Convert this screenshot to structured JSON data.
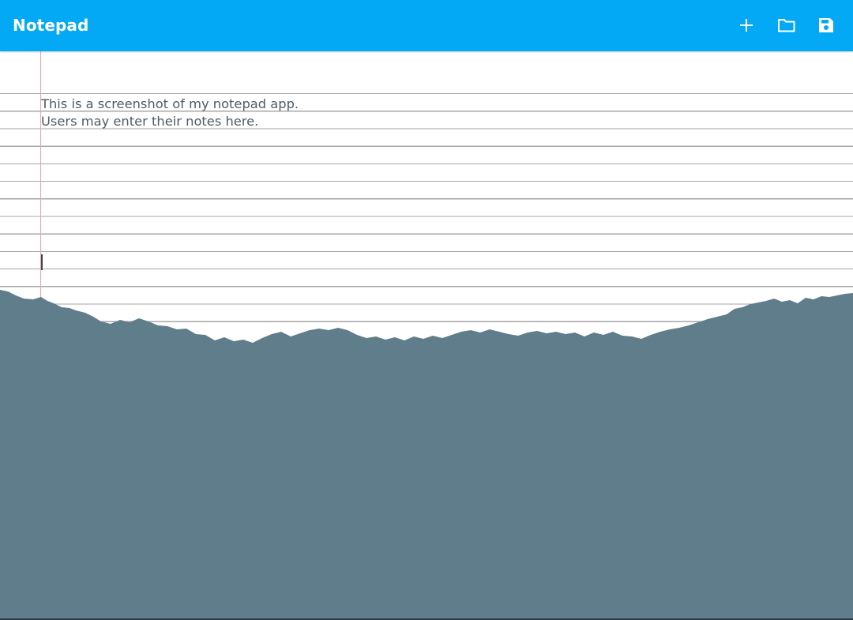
{
  "app_bar": {
    "title": "Notepad",
    "background_color": "#03a9f4",
    "actions": [
      {
        "name": "new-note",
        "icon": "plus-icon"
      },
      {
        "name": "open-note",
        "icon": "folder-icon"
      },
      {
        "name": "save-note",
        "icon": "save-icon"
      }
    ]
  },
  "editor": {
    "line_1": "This is a screenshot of my notepad app.",
    "line_2": "Users may enter their notes here.",
    "text_color": "#4d5b66",
    "rule_color": "#a6a6a6",
    "margin_color": "#ff9aa6"
  },
  "background": {
    "mountain_color": "#607d8b"
  }
}
